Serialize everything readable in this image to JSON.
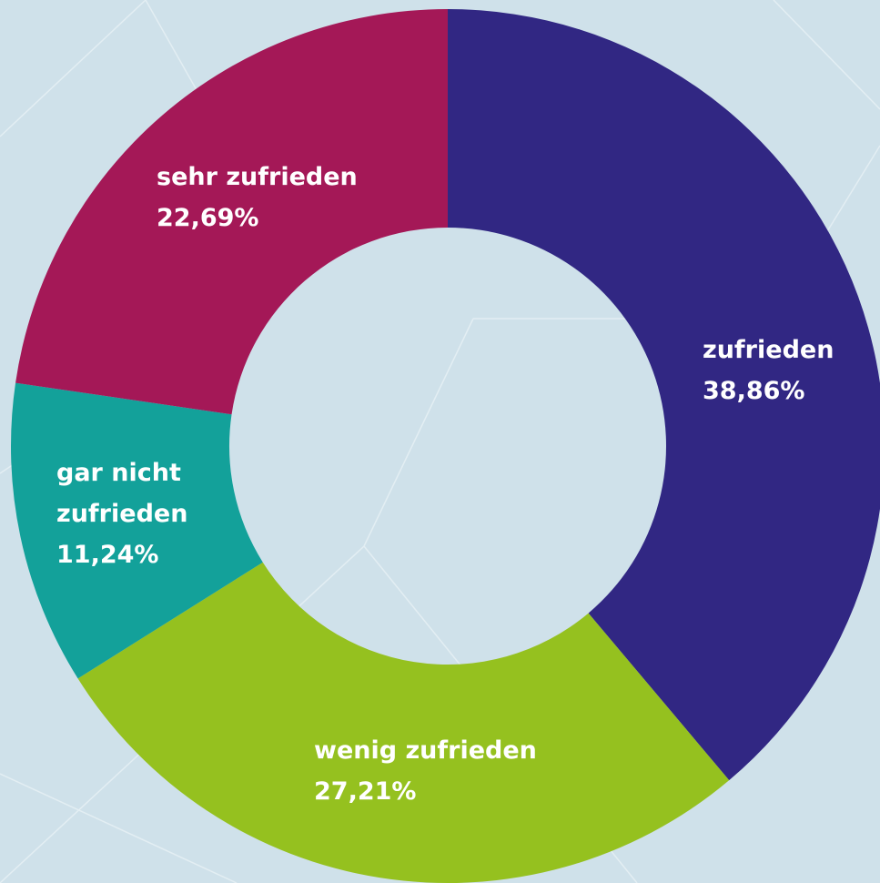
{
  "chart_data": {
    "type": "donut",
    "categories": [
      "zufrieden",
      "wenig zufrieden",
      "gar nicht\nzufrieden",
      "sehr zufrieden"
    ],
    "values": [
      38.86,
      27.21,
      11.24,
      22.69
    ],
    "value_labels": [
      "38,86%",
      "27,21%",
      "11,24%",
      "22,69%"
    ],
    "colors": [
      "#312783",
      "#95c11f",
      "#13a19a",
      "#a41857"
    ]
  }
}
